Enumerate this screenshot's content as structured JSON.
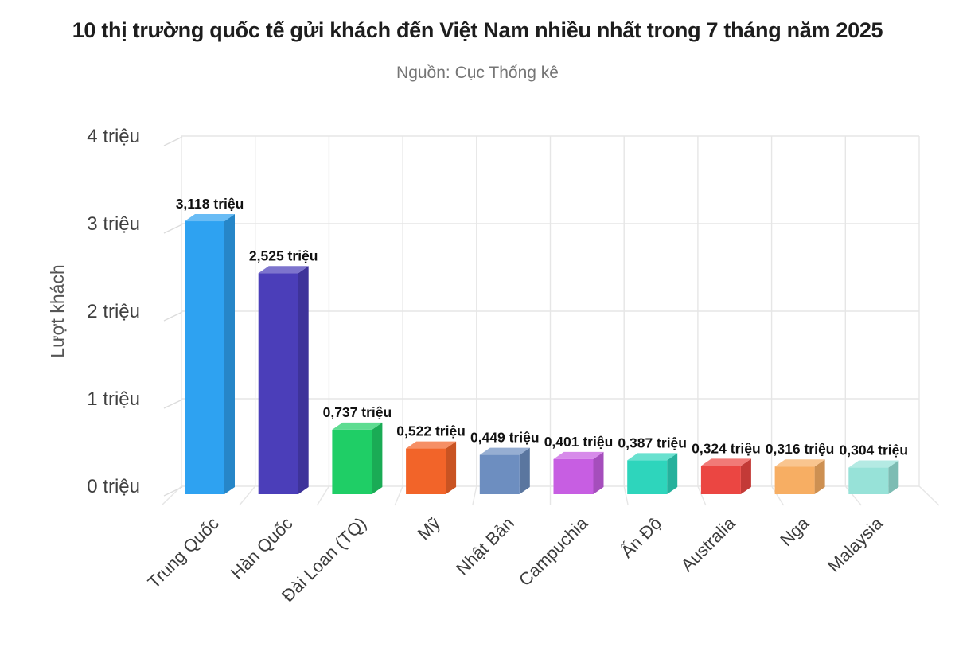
{
  "title": "10 thị trường quốc tế gửi khách đến Việt Nam nhiều nhất trong 7 tháng năm 2025",
  "subtitle": "Nguồn: Cục Thống kê",
  "chart_data": {
    "type": "bar",
    "style": "3d-column",
    "title": "10 thị trường quốc tế gửi khách đến Việt Nam nhiều nhất trong 7 tháng năm 2025",
    "subtitle": "Nguồn: Cục Thống kê",
    "ylabel": "Lượt khách",
    "unit": "triệu",
    "ylim": [
      0,
      4
    ],
    "grid": true,
    "legend": "none",
    "yticks": {
      "values": [
        0,
        1,
        2,
        3,
        4
      ],
      "labels": [
        "0 triệu",
        "1 triệu",
        "2 triệu",
        "3 triệu",
        "4 triệu"
      ]
    },
    "categories": [
      "Trung Quốc",
      "Hàn Quốc",
      "Đài Loan (TQ)",
      "Mỹ",
      "Nhật Bản",
      "Campuchia",
      "Ấn Độ",
      "Australia",
      "Nga",
      "Malaysia"
    ],
    "series": [
      {
        "name": "Lượt khách",
        "values": [
          3.118,
          2.525,
          0.737,
          0.522,
          0.449,
          0.401,
          0.387,
          0.324,
          0.316,
          0.304
        ]
      }
    ],
    "value_labels": [
      "3,118 triệu",
      "2,525 triệu",
      "0,737 triệu",
      "0,522 triệu",
      "0,449 triệu",
      "0,401 triệu",
      "0,387 triệu",
      "0,324 triệu",
      "0,316 triệu",
      "0,304 triệu"
    ],
    "bar_colors": [
      "#2EA2F1",
      "#4B3EB9",
      "#1FCE66",
      "#F26429",
      "#6D8EC0",
      "#C75EE2",
      "#2ED5BC",
      "#EB4642",
      "#F7AE63",
      "#97E2D8"
    ],
    "grid_color": "#E6E6E6",
    "value_label_color": "#111111",
    "tick_label_color": "#3F3F3F",
    "axis_title_color": "#555555"
  }
}
